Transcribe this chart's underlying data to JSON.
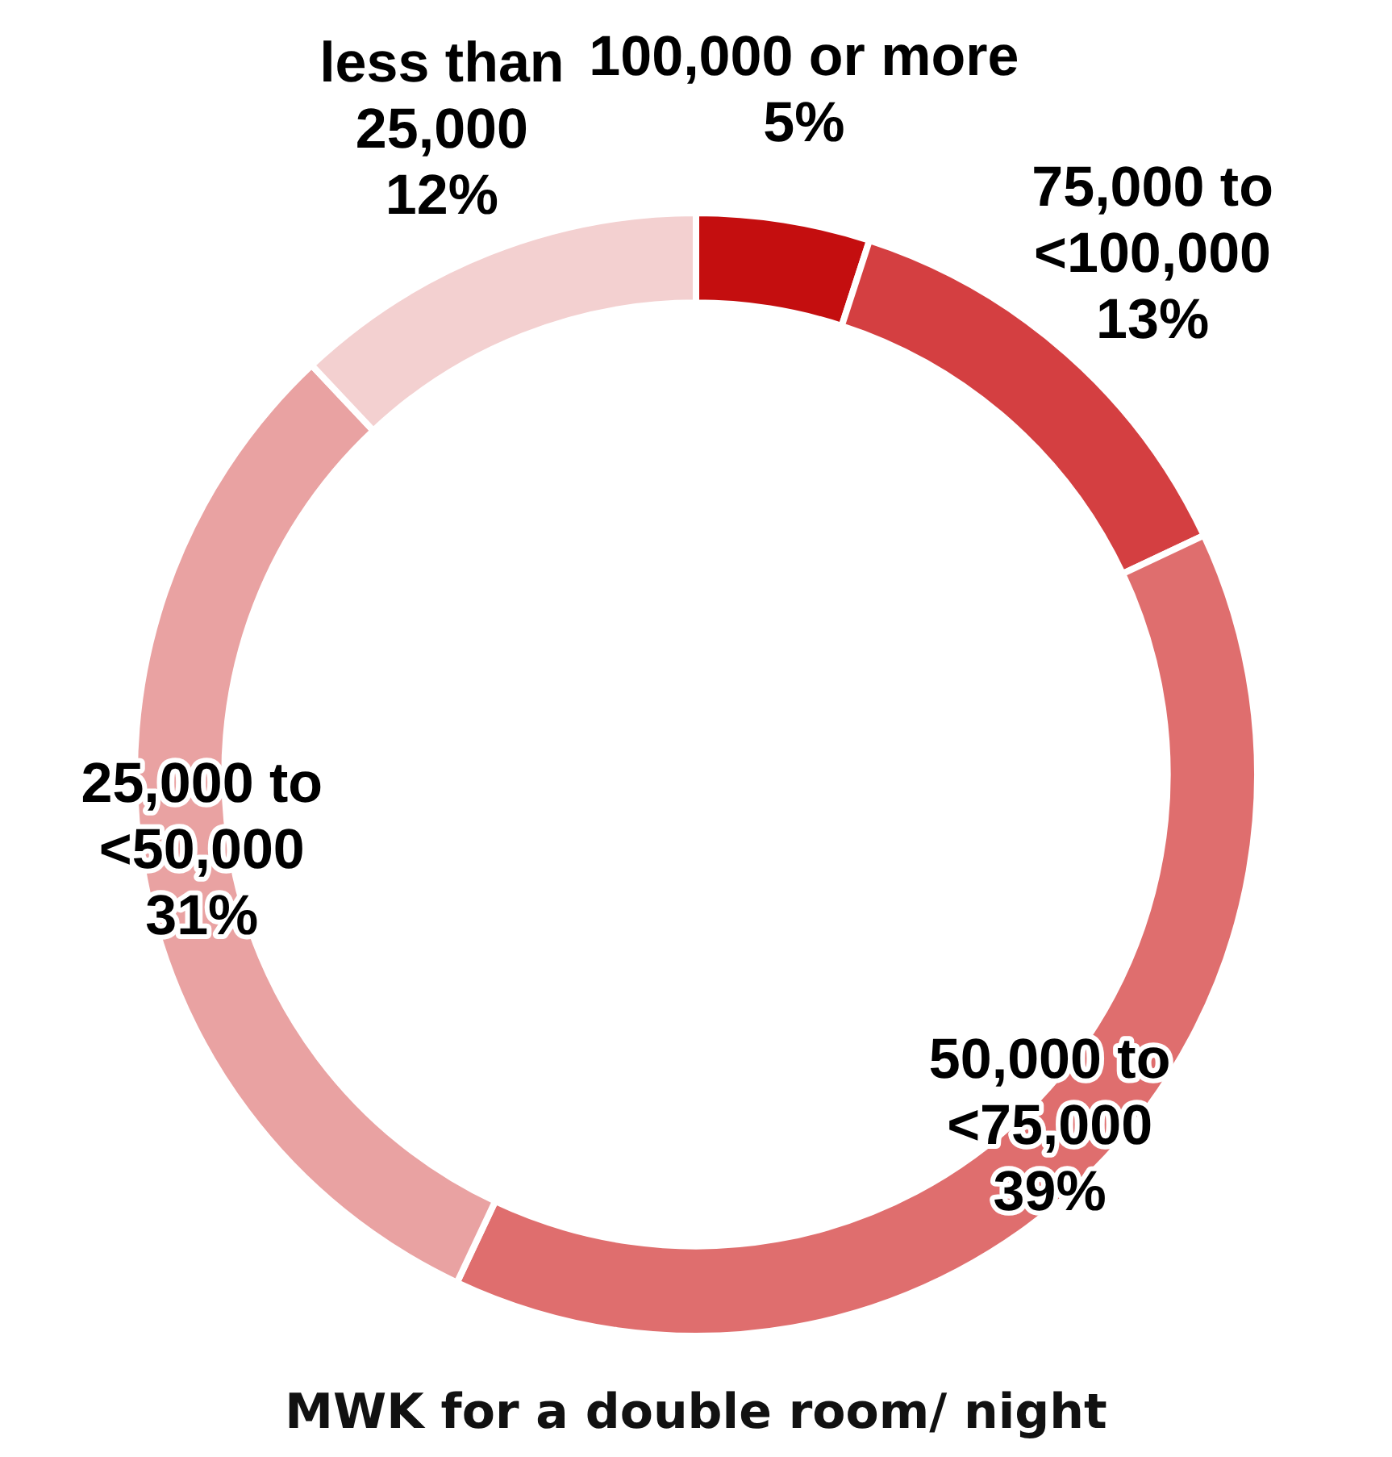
{
  "chart_data": {
    "type": "donut",
    "title": "MWK for a double room/ night",
    "categories": [
      "100,000 or more",
      "75,000 to\n<100,000",
      "50,000 to\n<75,000",
      "25,000 to\n<50,000",
      "less than\n25,000"
    ],
    "values": [
      5,
      13,
      39,
      31,
      12
    ],
    "colors": [
      "#c40e0f",
      "#d43f41",
      "#df6e6e",
      "#e9a2a2",
      "#f3d0d0"
    ],
    "value_labels": [
      "5%",
      "13%",
      "39%",
      "31%",
      "12%"
    ],
    "legend": false
  }
}
